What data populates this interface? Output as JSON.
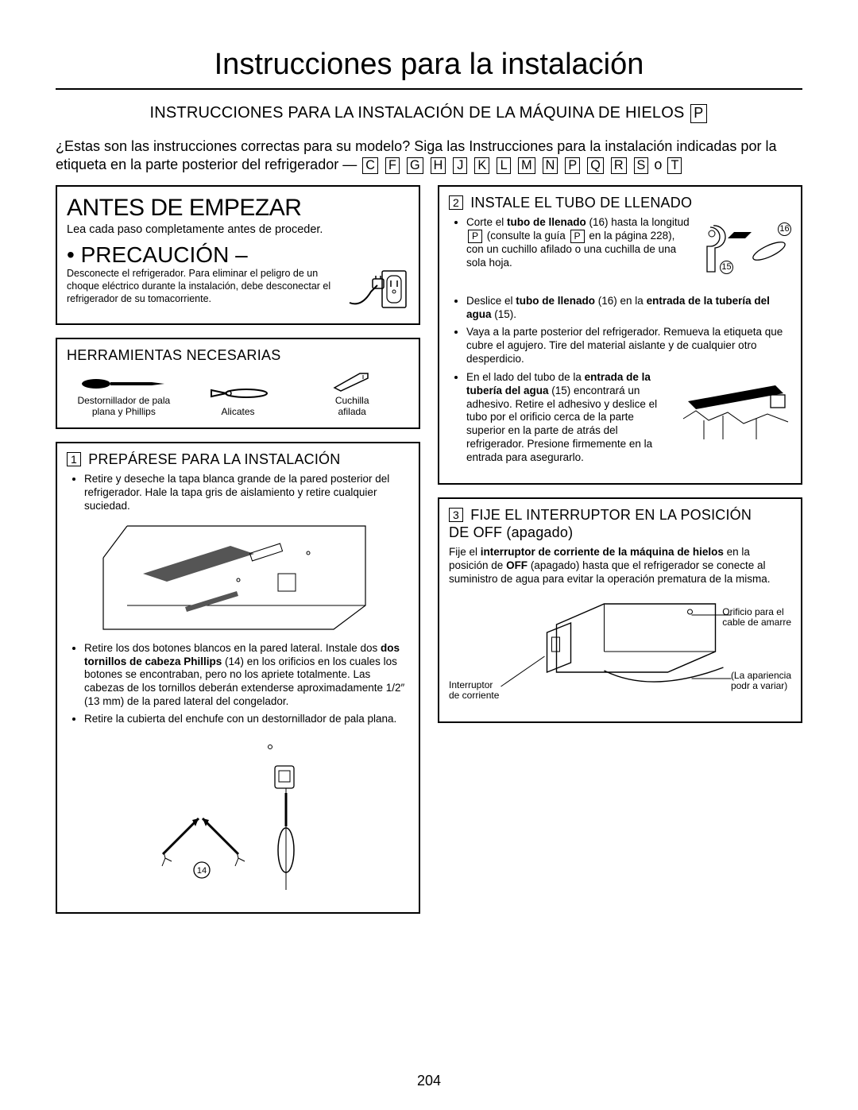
{
  "page_number": "204",
  "title": "Instrucciones para la instalación",
  "subtitle": "INSTRUCCIONES PARA LA INSTALACIÓN DE LA MÁQUINA DE HIELOS",
  "subtitle_box": "P",
  "intro_a": "¿Estas son las instrucciones correctas para su modelo? Siga las Instrucciones para la instalación indicadas por la etiqueta en la parte posterior del refrigerador —",
  "intro_letters": [
    "C",
    "F",
    "G",
    "H",
    "J",
    "K",
    "L",
    "M",
    "N",
    "P",
    "Q",
    "R",
    "S"
  ],
  "intro_or": "o",
  "intro_last": "T",
  "before": {
    "heading": "ANTES DE EMPEZAR",
    "line": "Lea cada paso completamente antes de proceder.",
    "caution_label": "PRECAUCIÓN –",
    "caution_text": "Desconecte el refrigerador. Para eliminar el peligro de un choque eléctrico durante la instalación, debe desconectar el refrigerador de su tomacorriente."
  },
  "tools": {
    "title": "HERRAMIENTAS NECESARIAS",
    "items": [
      {
        "name": "screwdriver-icon",
        "label_a": "Destornillador de pala",
        "label_b": "plana y Phillips"
      },
      {
        "name": "pliers-icon",
        "label_a": "Alicates",
        "label_b": ""
      },
      {
        "name": "knife-icon",
        "label_a": "Cuchilla",
        "label_b": "afilada"
      }
    ]
  },
  "step1": {
    "num": "1",
    "title": "PREPÁRESE PARA LA INSTALACIÓN",
    "b1": "Retire y deseche la tapa blanca grande de la pared posterior del refrigerador. Hale la tapa gris de aislamiento y retire cualquier suciedad.",
    "b2_a": "Retire los dos botones blancos en la pared lateral. Instale dos ",
    "b2_bold": "dos tornillos de cabeza Phillips",
    "b2_c": " (14) en los orificios en los cuales los botones se encontraban, pero no los apriete totalmente. Las cabezas de los tornillos deberán extenderse aproximadamente 1/2″ (13 mm) de la pared lateral del congelador.",
    "b3": "Retire la cubierta del enchufe con un destornillador de pala plana.",
    "fig2_num": "14"
  },
  "step2": {
    "num": "2",
    "title": "INSTALE EL TUBO DE LLENADO",
    "b1_a": "Corte el ",
    "b1_bold1": "tubo de llenado",
    "b1_b": " (16) hasta la longitud ",
    "b1_box": "P",
    "b1_c": " (consulte la guía ",
    "b1_box2": "P",
    "b1_d": " en la página 228), con un cuchillo afilado o una cuchilla de una sola hoja.",
    "g1_a": "16",
    "g1_b": "15",
    "b2_a": "Deslice el ",
    "b2_bold": "tubo de llenado",
    "b2_b": " (16) en la ",
    "b2_bold2": "entrada de la tubería del agua",
    "b2_c": " (15).",
    "b3": "Vaya a la parte posterior del refrigerador. Remueva la etiqueta que cubre el agujero. Tire del material aislante y de cualquier otro desperdicio.",
    "b4_a": "En el lado del tubo de la ",
    "b4_bold": "entrada de la tubería del agua",
    "b4_b": " (15) encontrará un adhesivo. Retire el adhesivo y deslice el tubo por el orificio cerca de la parte superior en la parte de atrás del refrigerador. Presione firmemente en la entrada para asegurarlo."
  },
  "step3": {
    "num": "3",
    "title_a": "FIJE EL INTERRUPTOR EN LA POSICIÓN",
    "title_b": "DE OFF (apagado)",
    "p1_a": "Fije el ",
    "p1_bold": "interruptor de corriente de la máquina de hielos",
    "p1_b": " en la posición de ",
    "p1_bold2": "OFF",
    "p1_c": " (apagado) hasta que el refrigerador se conecte al suministro de agua para evitar la operación prematura de la misma.",
    "call_left_a": "Interruptor",
    "call_left_b": "de corriente",
    "call_right_top_a": "Orificio para el",
    "call_right_top_b": "cable de amarre",
    "call_right_bot_a": "(La apariencia",
    "call_right_bot_b": "podr a variar)"
  }
}
